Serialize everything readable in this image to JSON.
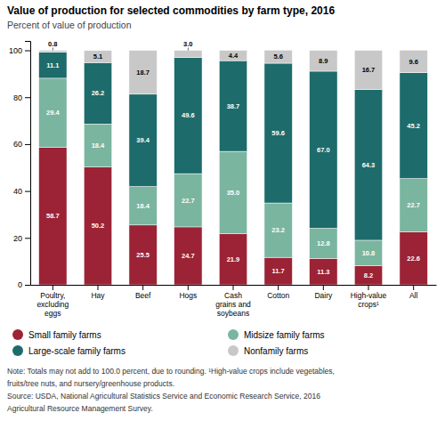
{
  "chart_data": {
    "type": "bar",
    "stacked": true,
    "title": "Value of production for selected commodities by farm type, 2016",
    "subtitle": "Percent of value of production",
    "categories": [
      "Poultry,\nexcluding\neggs",
      "Hay",
      "Beef",
      "Hogs",
      "Cash\ngrains and\nsoybeans",
      "Cotton",
      "Dairy",
      "High-value\ncrops¹",
      "All"
    ],
    "series": [
      {
        "name": "Small family farms",
        "color": "#9b2335",
        "values": [
          58.7,
          50.2,
          25.5,
          24.7,
          21.9,
          11.7,
          11.3,
          8.2,
          22.6
        ],
        "value_labels": [
          "58.7",
          "50.2",
          "25.5",
          "24.7",
          "21.9",
          "11.7",
          "11.3",
          "8.2",
          "22.6"
        ]
      },
      {
        "name": "Midsize family farms",
        "color": "#7ab5a0",
        "values": [
          29.4,
          18.4,
          16.4,
          22.7,
          35.0,
          23.2,
          12.8,
          10.8,
          22.7
        ],
        "value_labels": [
          "29.4",
          "18.4",
          "16.4",
          "22.7",
          "35.0",
          "23.2",
          "12.8",
          "10.8",
          "22.7"
        ]
      },
      {
        "name": "Large-scale family farms",
        "color": "#1e6b6b",
        "values": [
          11.1,
          26.2,
          39.4,
          49.6,
          38.7,
          59.6,
          67.0,
          64.3,
          45.2
        ],
        "value_labels": [
          "11.1",
          "26.2",
          "39.4",
          "49.6",
          "38.7",
          "59.6",
          "67.0",
          "64.3",
          "45.2"
        ]
      },
      {
        "name": "Nonfamily farms",
        "color": "#c8c8c8",
        "values": [
          0.8,
          5.1,
          18.7,
          3.0,
          4.4,
          5.6,
          8.9,
          16.7,
          9.6
        ],
        "value_labels": [
          "0.8",
          "5.1",
          "18.7",
          "3.0",
          "4.4",
          "5.6",
          "8.9",
          "16.7",
          "9.6"
        ]
      }
    ],
    "ylim": [
      0,
      104
    ],
    "yticks": [
      0,
      20,
      40,
      60,
      80,
      100
    ],
    "grid": false,
    "legend": "bottom",
    "data_labels": true,
    "annotations": [
      "Note: Totals may not add to 100.0 percent, due to rounding. ¹High-value crops include vegetables,",
      "fruits/tree nuts, and nursery/greenhouse products.",
      "Source: USDA, National Agricultural Statistics Service and Economic Research Service, 2016",
      "Agricultural Resource Management Survey."
    ]
  }
}
